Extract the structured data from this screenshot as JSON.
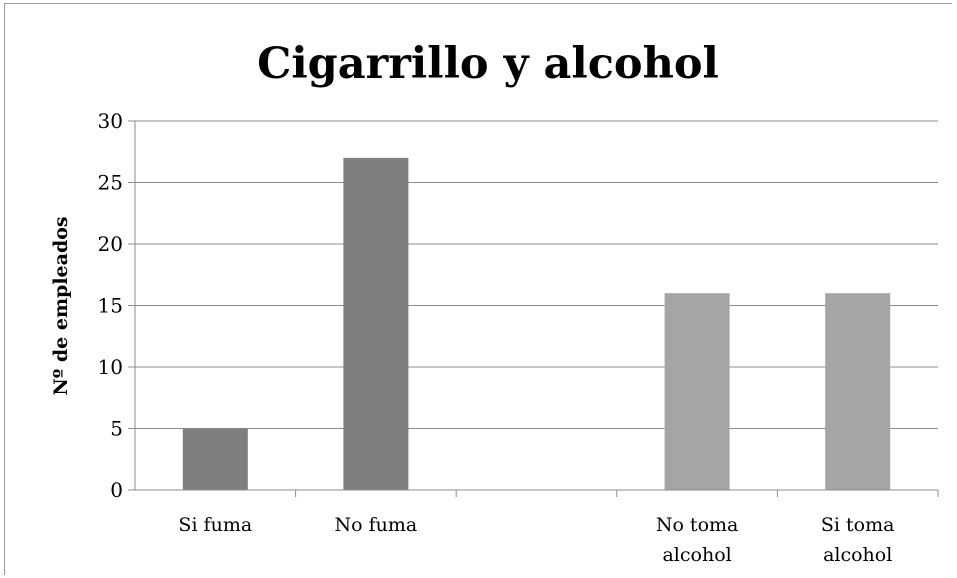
{
  "chart_data": {
    "type": "bar",
    "title": "Cigarrillo y alcohol",
    "xlabel": "",
    "ylabel": "Nº de empleados",
    "ylim": [
      0,
      30
    ],
    "yticks": [
      0,
      5,
      10,
      15,
      20,
      25,
      30
    ],
    "grid": true,
    "legend": "none",
    "categories": [
      {
        "lines": [
          "Si fuma"
        ],
        "value": 5,
        "color": "#7f7f7f"
      },
      {
        "lines": [
          "No fuma"
        ],
        "value": 27,
        "color": "#7f7f7f"
      },
      {
        "lines": [
          ""
        ],
        "value": null,
        "color": "#a5a5a5"
      },
      {
        "lines": [
          "No toma",
          "alcohol"
        ],
        "value": 16,
        "color": "#a5a5a5"
      },
      {
        "lines": [
          "Si toma",
          "alcohol"
        ],
        "value": 16,
        "color": "#a5a5a5"
      }
    ]
  }
}
